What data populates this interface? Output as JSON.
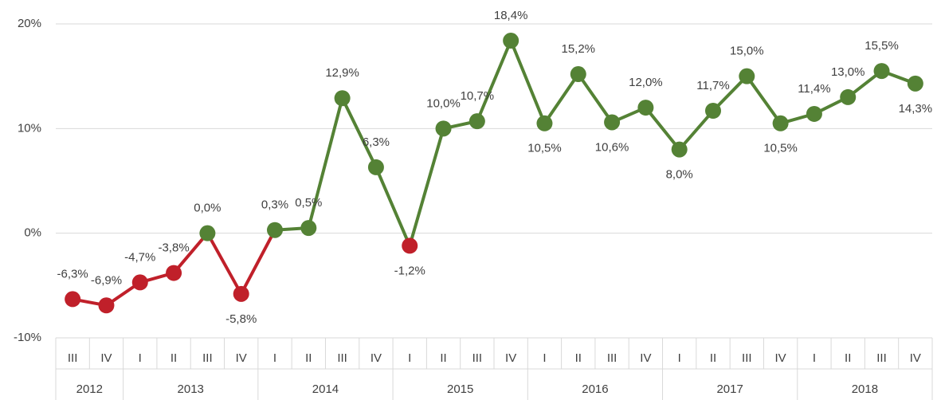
{
  "chart_data": {
    "type": "line",
    "categories": [
      "III",
      "IV",
      "I",
      "II",
      "III",
      "IV",
      "I",
      "II",
      "III",
      "IV",
      "I",
      "II",
      "III",
      "IV",
      "I",
      "II",
      "III",
      "IV",
      "I",
      "II",
      "III",
      "IV",
      "I",
      "II",
      "III",
      "IV"
    ],
    "year_groups": [
      {
        "label": "2012",
        "size": 2
      },
      {
        "label": "2013",
        "size": 4
      },
      {
        "label": "2014",
        "size": 4
      },
      {
        "label": "2015",
        "size": 4
      },
      {
        "label": "2016",
        "size": 4
      },
      {
        "label": "2017",
        "size": 4
      },
      {
        "label": "2018",
        "size": 4
      }
    ],
    "values": [
      -6.3,
      -6.9,
      -4.7,
      -3.8,
      0.0,
      -5.8,
      0.3,
      0.5,
      12.9,
      6.3,
      -1.2,
      10.0,
      10.7,
      18.4,
      10.5,
      15.2,
      10.6,
      12.0,
      8.0,
      11.7,
      15.0,
      10.5,
      11.4,
      13.0,
      15.5,
      14.3
    ],
    "value_labels": [
      "-6,3%",
      "-6,9%",
      "-4,7%",
      "-3,8%",
      "0,0%",
      "-5,8%",
      "0,3%",
      "0,5%",
      "12,9%",
      "6,3%",
      "-1,2%",
      "10,0%",
      "10,7%",
      "18,4%",
      "10,5%",
      "15,2%",
      "10,6%",
      "12,0%",
      "8,0%",
      "11,7%",
      "15,0%",
      "10,5%",
      "11,4%",
      "13,0%",
      "15,5%",
      "14,3%"
    ],
    "point_colors": [
      "#c0202a",
      "#c0202a",
      "#c0202a",
      "#c0202a",
      "#548235",
      "#c0202a",
      "#548235",
      "#548235",
      "#548235",
      "#548235",
      "#c0202a",
      "#548235",
      "#548235",
      "#548235",
      "#548235",
      "#548235",
      "#548235",
      "#548235",
      "#548235",
      "#548235",
      "#548235",
      "#548235",
      "#548235",
      "#548235",
      "#548235",
      "#548235"
    ],
    "segment_colors": [
      "#c0202a",
      "#c0202a",
      "#c0202a",
      "#c0202a",
      "#c0202a",
      "#c0202a",
      "#548235",
      "#548235",
      "#548235",
      "#548235",
      "#548235",
      "#548235",
      "#548235",
      "#548235",
      "#548235",
      "#548235",
      "#548235",
      "#548235",
      "#548235",
      "#548235",
      "#548235",
      "#548235",
      "#548235",
      "#548235",
      "#548235"
    ],
    "ylim": [
      -10,
      20
    ],
    "yticks": [
      {
        "value": -10,
        "label": "-10%"
      },
      {
        "value": 0,
        "label": "0%"
      },
      {
        "value": 10,
        "label": "10%"
      },
      {
        "value": 20,
        "label": "20%"
      }
    ],
    "grid": true
  }
}
